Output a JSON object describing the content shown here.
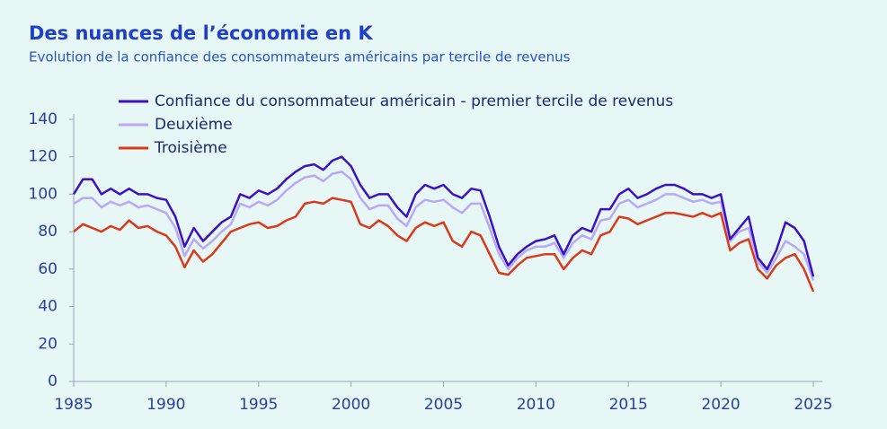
{
  "chart_data": {
    "type": "line",
    "title": "Des nuances de l’économie en K",
    "subtitle": "Evolution de la confiance des consommateurs américains par tercile de revenus",
    "x": [
      1985,
      1985.5,
      1986,
      1986.5,
      1987,
      1987.5,
      1988,
      1988.5,
      1989,
      1989.5,
      1990,
      1990.5,
      1991,
      1991.5,
      1992,
      1992.5,
      1993,
      1993.5,
      1994,
      1994.5,
      1995,
      1995.5,
      1996,
      1996.5,
      1997,
      1997.5,
      1998,
      1998.5,
      1999,
      1999.5,
      2000,
      2000.5,
      2001,
      2001.5,
      2002,
      2002.5,
      2003,
      2003.5,
      2004,
      2004.5,
      2005,
      2005.5,
      2006,
      2006.5,
      2007,
      2007.5,
      2008,
      2008.5,
      2009,
      2009.5,
      2010,
      2010.5,
      2011,
      2011.5,
      2012,
      2012.5,
      2013,
      2013.5,
      2014,
      2014.5,
      2015,
      2015.5,
      2016,
      2016.5,
      2017,
      2017.5,
      2018,
      2018.5,
      2019,
      2019.5,
      2020,
      2020.5,
      2021,
      2021.5,
      2022,
      2022.5,
      2023,
      2023.5,
      2024,
      2024.5,
      2025
    ],
    "series": [
      {
        "name": "Confiance du consommateur américain - premier tercile de revenus",
        "color": "#3a12c4",
        "values": [
          100,
          108,
          108,
          100,
          103,
          100,
          103,
          100,
          100,
          98,
          97,
          88,
          72,
          82,
          75,
          80,
          85,
          88,
          100,
          98,
          102,
          100,
          103,
          108,
          112,
          115,
          116,
          113,
          118,
          120,
          115,
          105,
          98,
          100,
          100,
          93,
          88,
          100,
          105,
          103,
          105,
          100,
          98,
          103,
          102,
          88,
          72,
          62,
          68,
          72,
          75,
          76,
          78,
          68,
          78,
          82,
          80,
          92,
          92,
          100,
          103,
          98,
          100,
          103,
          105,
          105,
          103,
          100,
          100,
          98,
          100,
          76,
          82,
          88,
          66,
          60,
          70,
          85,
          82,
          75,
          56
        ]
      },
      {
        "name": "Deuxième",
        "color": "#b9a9f5",
        "values": [
          95,
          98,
          98,
          93,
          96,
          94,
          96,
          93,
          94,
          92,
          90,
          82,
          67,
          76,
          71,
          75,
          80,
          84,
          95,
          93,
          96,
          94,
          97,
          102,
          106,
          109,
          110,
          107,
          111,
          112,
          108,
          98,
          92,
          94,
          94,
          87,
          83,
          93,
          97,
          96,
          97,
          93,
          90,
          95,
          95,
          82,
          68,
          60,
          66,
          70,
          72,
          72,
          74,
          66,
          74,
          78,
          76,
          86,
          87,
          95,
          97,
          93,
          95,
          97,
          100,
          100,
          98,
          96,
          97,
          95,
          96,
          75,
          80,
          82,
          64,
          58,
          66,
          75,
          72,
          68,
          54
        ]
      },
      {
        "name": "Troisième",
        "color": "#d93a1c",
        "values": [
          80,
          84,
          82,
          80,
          83,
          81,
          86,
          82,
          83,
          80,
          78,
          72,
          61,
          70,
          64,
          68,
          74,
          80,
          82,
          84,
          85,
          82,
          83,
          86,
          88,
          95,
          96,
          95,
          98,
          97,
          96,
          84,
          82,
          86,
          83,
          78,
          75,
          82,
          85,
          83,
          85,
          75,
          72,
          80,
          78,
          68,
          58,
          57,
          62,
          66,
          67,
          68,
          68,
          60,
          66,
          70,
          68,
          78,
          80,
          88,
          87,
          84,
          86,
          88,
          90,
          90,
          89,
          88,
          90,
          88,
          90,
          70,
          74,
          76,
          60,
          55,
          62,
          66,
          68,
          60,
          48
        ]
      }
    ],
    "xlim": [
      1985,
      2025
    ],
    "xticks": [
      1985,
      1990,
      1995,
      2000,
      2005,
      2010,
      2015,
      2020,
      2025
    ],
    "ylim": [
      0,
      140
    ],
    "yticks": [
      0,
      20,
      40,
      60,
      80,
      100,
      120,
      140
    ]
  }
}
